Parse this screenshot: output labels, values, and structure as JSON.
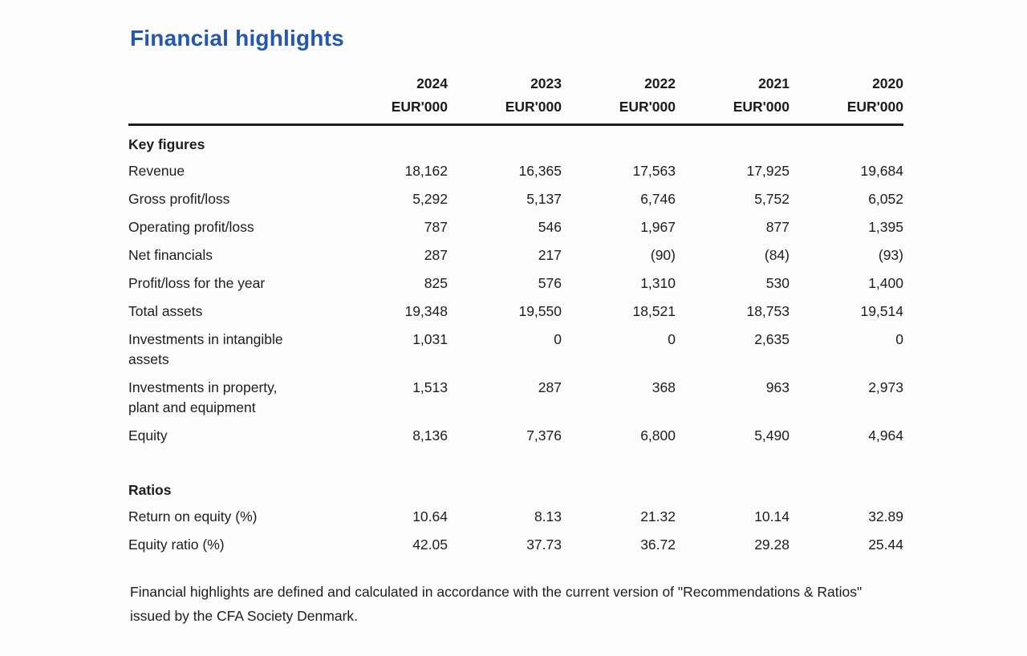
{
  "title": "Financial highlights",
  "colors": {
    "title_blue": "#2557ac",
    "rule_black": "#1c1c1c",
    "body_text": "#1d1d1d",
    "page_background": "#fcfcfc"
  },
  "table": {
    "year_headers": [
      "2024",
      "2023",
      "2022",
      "2021",
      "2020"
    ],
    "unit_label": "EUR'000",
    "sections": [
      {
        "heading": "Key figures",
        "rows": [
          {
            "label": "Revenue",
            "values": [
              "18,162",
              "16,365",
              "17,563",
              "17,925",
              "19,684"
            ]
          },
          {
            "label": "Gross profit/loss",
            "values": [
              "5,292",
              "5,137",
              "6,746",
              "5,752",
              "6,052"
            ]
          },
          {
            "label": "Operating profit/loss",
            "values": [
              "787",
              "546",
              "1,967",
              "877",
              "1,395"
            ]
          },
          {
            "label": "Net financials",
            "values": [
              "287",
              "217",
              "(90)",
              "(84)",
              "(93)"
            ]
          },
          {
            "label": "Profit/loss for the year",
            "values": [
              "825",
              "576",
              "1,310",
              "530",
              "1,400"
            ]
          },
          {
            "label": "Total assets",
            "values": [
              "19,348",
              "19,550",
              "18,521",
              "18,753",
              "19,514"
            ]
          },
          {
            "label": "Investments in intangible\nassets",
            "values": [
              "1,031",
              "0",
              "0",
              "2,635",
              "0"
            ]
          },
          {
            "label": "Investments in property,\nplant and equipment",
            "values": [
              "1,513",
              "287",
              "368",
              "963",
              "2,973"
            ]
          },
          {
            "label": "Equity",
            "values": [
              "8,136",
              "7,376",
              "6,800",
              "5,490",
              "4,964"
            ]
          }
        ]
      },
      {
        "heading": "Ratios",
        "rows": [
          {
            "label": "Return on equity (%)",
            "values": [
              "10.64",
              "8.13",
              "21.32",
              "10.14",
              "32.89"
            ]
          },
          {
            "label": "Equity ratio (%)",
            "values": [
              "42.05",
              "37.73",
              "36.72",
              "29.28",
              "25.44"
            ]
          }
        ]
      }
    ]
  },
  "footnote": "Financial highlights are defined and calculated in accordance with the current version of \"Recommendations & Ratios\" issued by the CFA Society Denmark."
}
